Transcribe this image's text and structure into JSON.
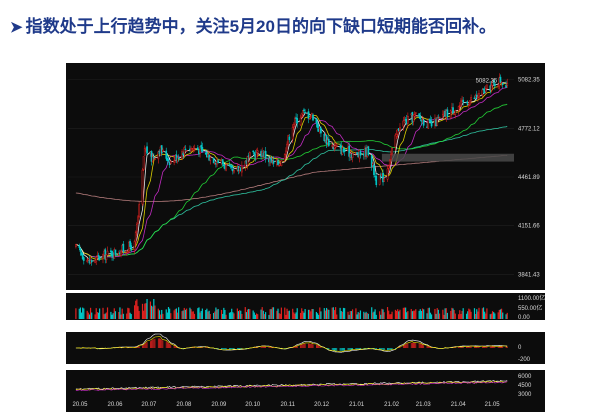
{
  "headline": {
    "bullet": "➤",
    "text": "指数处于上行趋势中，关注5月20日的向下缺口短期能否回补。"
  },
  "chart_data": {
    "type": "candlestick",
    "price_axis": {
      "ticks": [
        "5082.35",
        "4772.12",
        "4461.89",
        "4151.66",
        "3841.43"
      ],
      "ylim": [
        3780,
        5150
      ]
    },
    "peak_label": "5082.35",
    "x_ticks": [
      "20.05",
      "20.06",
      "20.07",
      "20.08",
      "20.09",
      "20.10",
      "20.11",
      "20.12",
      "21.01",
      "21.02",
      "21.03",
      "21.04",
      "21.05"
    ],
    "gap_zone": [
      4560,
      4610
    ],
    "volume_axis": {
      "ticks": [
        "1100.00亿",
        "550.00亿",
        "0.00"
      ]
    },
    "macd_axis": {
      "ticks": [
        "0",
        "-200"
      ]
    },
    "kdj_axis": {
      "ticks": [
        "6000",
        "4500",
        "3000"
      ]
    },
    "colors": {
      "up": "#e0211f",
      "down": "#00c7c7",
      "ma5": "#ffffff",
      "ma10": "#f2e600",
      "ma20": "#d42fd4",
      "ma60": "#25e23a",
      "ma120": "#33d6b0",
      "ma250": "#c98a8a",
      "gap": "#4a4a4a"
    },
    "price_path": [
      [
        "2020-05-08",
        4010
      ],
      [
        "2020-05-20",
        3920
      ],
      [
        "2020-06-01",
        3960
      ],
      [
        "2020-06-15",
        3990
      ],
      [
        "2020-06-29",
        4030
      ],
      [
        "2020-07-03",
        4260
      ],
      [
        "2020-07-08",
        4650
      ],
      [
        "2020-07-14",
        4580
      ],
      [
        "2020-07-21",
        4640
      ],
      [
        "2020-07-31",
        4560
      ],
      [
        "2020-08-14",
        4650
      ],
      [
        "2020-08-24",
        4640
      ],
      [
        "2020-09-04",
        4590
      ],
      [
        "2020-09-15",
        4550
      ],
      [
        "2020-09-25",
        4480
      ],
      [
        "2020-10-09",
        4590
      ],
      [
        "2020-10-20",
        4620
      ],
      [
        "2020-10-30",
        4540
      ],
      [
        "2020-11-06",
        4560
      ],
      [
        "2020-11-16",
        4800
      ],
      [
        "2020-11-25",
        4870
      ],
      [
        "2020-12-04",
        4850
      ],
      [
        "2020-12-11",
        4740
      ],
      [
        "2020-12-21",
        4660
      ],
      [
        "2020-12-31",
        4630
      ],
      [
        "2021-01-13",
        4600
      ],
      [
        "2021-01-22",
        4630
      ],
      [
        "2021-01-29",
        4440
      ],
      [
        "2021-02-05",
        4460
      ],
      [
        "2021-02-19",
        4800
      ],
      [
        "2021-03-05",
        4850
      ],
      [
        "2021-03-19",
        4790
      ],
      [
        "2021-04-02",
        4870
      ],
      [
        "2021-04-16",
        4930
      ],
      [
        "2021-04-30",
        4980
      ],
      [
        "2021-05-14",
        5060
      ],
      [
        "2021-05-20",
        5082
      ],
      [
        "2021-05-25",
        5030
      ]
    ]
  }
}
